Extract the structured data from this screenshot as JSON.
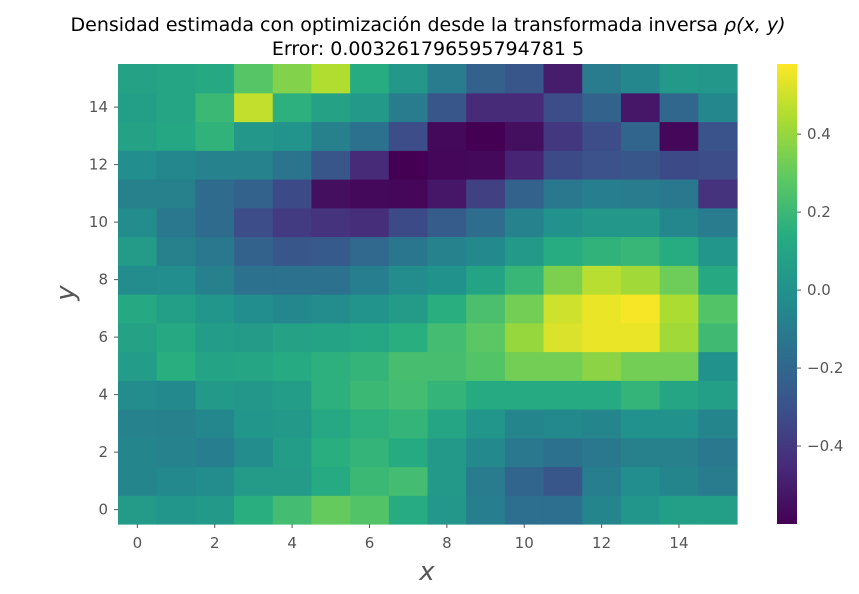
{
  "chart_data": {
    "type": "heatmap",
    "title_line1": "Densidad estimada con optimización desde la transformada inversa ",
    "title_symbol": "ρ(x, y)",
    "title_line2": "Error: 0.003261796595794781 5",
    "xlabel": "x",
    "ylabel": "y",
    "x_ticks": [
      "0",
      "2",
      "4",
      "6",
      "8",
      "10",
      "12",
      "14"
    ],
    "y_ticks": [
      "0",
      "2",
      "4",
      "6",
      "8",
      "10",
      "12",
      "14"
    ],
    "colorbar_ticks": [
      "−0.4",
      "−0.2",
      "0.0",
      "0.2",
      "0.4"
    ],
    "colorbar_tick_values": [
      -0.4,
      -0.2,
      0.0,
      0.2,
      0.4
    ],
    "vmin": -0.6,
    "vmax": 0.58,
    "colormap": "viridis",
    "grid": false,
    "rows_bottom_to_top": [
      [
        0.05,
        0.02,
        0.04,
        0.15,
        0.22,
        0.3,
        0.26,
        0.14,
        0.03,
        -0.09,
        -0.16,
        -0.16,
        -0.06,
        0.02,
        0.07,
        0.07
      ],
      [
        -0.06,
        -0.04,
        -0.03,
        0.05,
        0.05,
        0.13,
        0.2,
        0.22,
        0.04,
        -0.1,
        -0.21,
        -0.28,
        -0.09,
        -0.02,
        -0.06,
        -0.1
      ],
      [
        -0.06,
        -0.07,
        -0.09,
        -0.03,
        0.06,
        0.15,
        0.18,
        0.13,
        0.04,
        -0.04,
        -0.12,
        -0.15,
        -0.12,
        -0.08,
        -0.08,
        -0.12
      ],
      [
        -0.07,
        -0.08,
        -0.05,
        0.02,
        0.04,
        0.12,
        0.16,
        0.18,
        0.1,
        0.02,
        -0.06,
        -0.04,
        -0.06,
        0.0,
        0.0,
        -0.06
      ],
      [
        -0.03,
        -0.04,
        0.04,
        0.03,
        0.06,
        0.16,
        0.2,
        0.22,
        0.18,
        0.13,
        0.13,
        0.13,
        0.13,
        0.18,
        0.1,
        0.07
      ],
      [
        0.06,
        0.15,
        0.09,
        0.1,
        0.13,
        0.16,
        0.18,
        0.23,
        0.23,
        0.26,
        0.33,
        0.33,
        0.38,
        0.33,
        0.33,
        0.0
      ],
      [
        0.08,
        0.12,
        0.06,
        0.05,
        0.08,
        0.09,
        0.11,
        0.15,
        0.22,
        0.28,
        0.4,
        0.52,
        0.55,
        0.55,
        0.42,
        0.21
      ],
      [
        0.12,
        0.07,
        0.02,
        -0.02,
        -0.05,
        -0.03,
        0.01,
        0.05,
        0.15,
        0.24,
        0.33,
        0.5,
        0.55,
        0.57,
        0.44,
        0.26
      ],
      [
        -0.03,
        -0.02,
        -0.08,
        -0.15,
        -0.15,
        -0.15,
        -0.09,
        -0.03,
        0.0,
        0.09,
        0.19,
        0.35,
        0.46,
        0.42,
        0.32,
        0.12
      ],
      [
        0.05,
        -0.08,
        -0.12,
        -0.22,
        -0.28,
        -0.26,
        -0.19,
        -0.13,
        -0.07,
        -0.04,
        0.04,
        0.14,
        0.17,
        0.19,
        0.14,
        0.02
      ],
      [
        -0.03,
        -0.12,
        -0.18,
        -0.32,
        -0.39,
        -0.42,
        -0.44,
        -0.33,
        -0.25,
        -0.17,
        -0.07,
        0.0,
        0.03,
        0.03,
        -0.05,
        -0.1
      ],
      [
        -0.08,
        -0.08,
        -0.18,
        -0.22,
        -0.33,
        -0.55,
        -0.57,
        -0.58,
        -0.52,
        -0.37,
        -0.22,
        -0.12,
        -0.09,
        -0.1,
        -0.12,
        -0.42
      ],
      [
        -0.02,
        -0.05,
        -0.07,
        -0.07,
        -0.14,
        -0.28,
        -0.45,
        -0.6,
        -0.58,
        -0.57,
        -0.47,
        -0.33,
        -0.3,
        -0.28,
        -0.33,
        -0.32
      ],
      [
        0.08,
        0.11,
        0.17,
        0.03,
        0.01,
        -0.08,
        -0.15,
        -0.32,
        -0.57,
        -0.6,
        -0.55,
        -0.4,
        -0.32,
        -0.21,
        -0.58,
        -0.29
      ],
      [
        0.07,
        0.1,
        0.2,
        0.48,
        0.16,
        0.08,
        0.04,
        -0.1,
        -0.28,
        -0.45,
        -0.45,
        -0.32,
        -0.22,
        -0.52,
        -0.2,
        -0.05
      ],
      [
        0.08,
        0.1,
        0.12,
        0.27,
        0.36,
        0.45,
        0.14,
        0.03,
        -0.1,
        -0.23,
        -0.28,
        -0.5,
        -0.1,
        -0.05,
        0.04,
        0.03
      ]
    ]
  }
}
